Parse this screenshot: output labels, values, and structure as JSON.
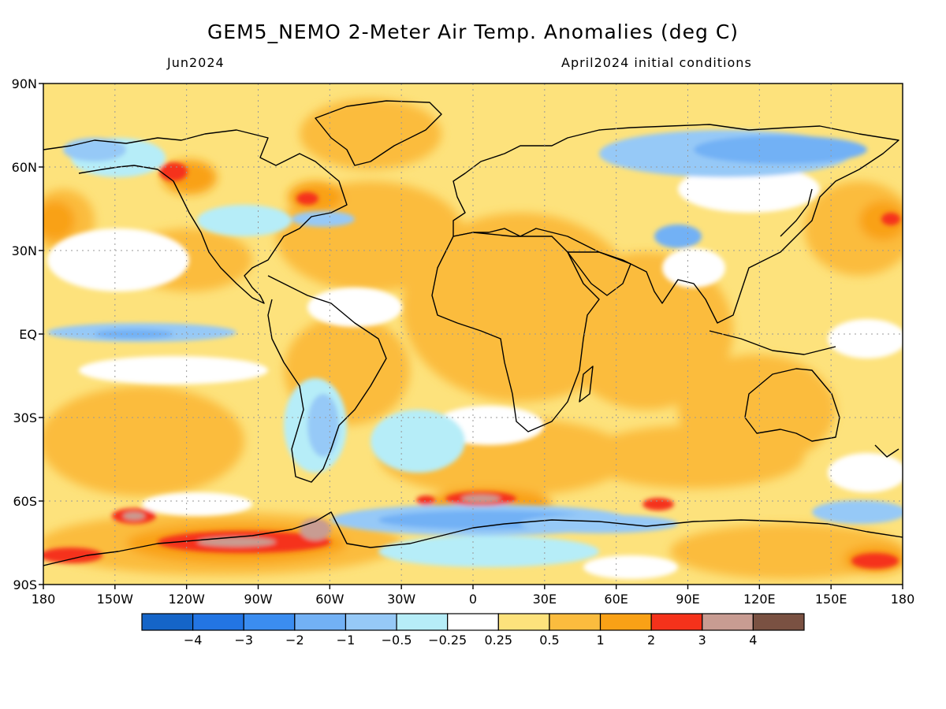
{
  "header": {
    "title": "GEM5_NEMO 2-Meter Air Temp. Anomalies (deg C)",
    "period": "Jun2024",
    "initial_conditions": "April2024 initial conditions"
  },
  "axes": {
    "lat_labels": [
      "90N",
      "60N",
      "30N",
      "EQ",
      "30S",
      "60S",
      "90S"
    ],
    "lat_values": [
      90,
      60,
      30,
      0,
      -30,
      -60,
      -90
    ],
    "lon_labels": [
      "180",
      "150W",
      "120W",
      "90W",
      "60W",
      "30W",
      "0",
      "30E",
      "60E",
      "90E",
      "120E",
      "150E",
      "180"
    ],
    "lon_values": [
      -180,
      -150,
      -120,
      -90,
      -60,
      -30,
      0,
      30,
      60,
      90,
      120,
      150,
      180
    ]
  },
  "colorbar": {
    "colors": [
      "#1565c8",
      "#2375e3",
      "#3b8df0",
      "#72b1f5",
      "#96c9f7",
      "#b6edf8",
      "#ffffff",
      "#fde27c",
      "#fbbc3e",
      "#f9a116",
      "#f5321b",
      "#c89c92",
      "#7a5142"
    ],
    "labels": [
      "−4",
      "−3",
      "−2",
      "−1",
      "−0.5",
      "−0.25",
      "0.25",
      "0.5",
      "1",
      "2",
      "3",
      "4"
    ]
  },
  "colors": {
    "weak_warm": "#fde27c",
    "warm": "#fbbc3e",
    "strong_warm": "#f9a116",
    "hot": "#f5321b",
    "very_hot": "#c89c92",
    "weak_cool": "#b6edf8",
    "cool": "#96c9f7",
    "cold": "#72b1f5",
    "very_cold": "#3b8df0"
  }
}
